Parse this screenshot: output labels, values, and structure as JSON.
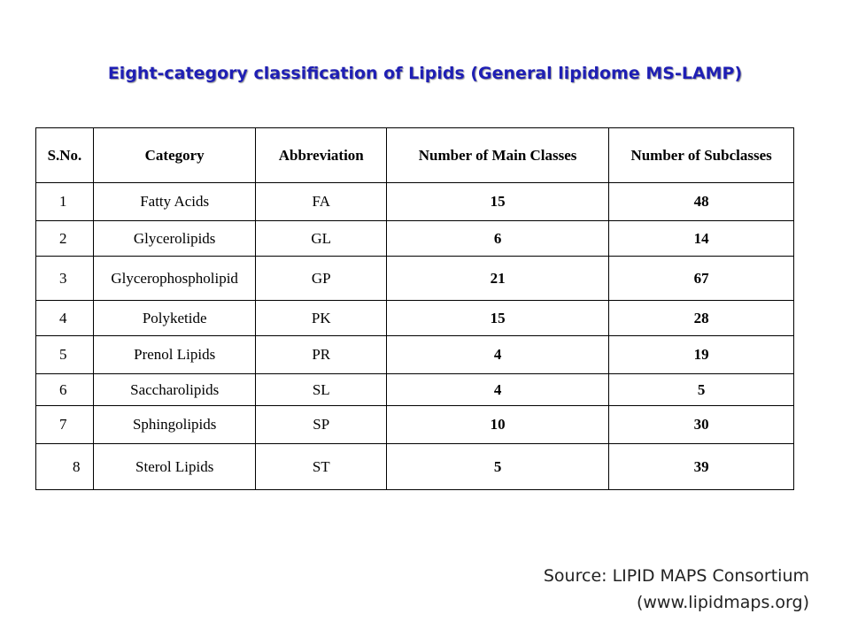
{
  "title": "Eight-category classification of Lipids (General lipidome MS-LAMP)",
  "table": {
    "headers": [
      "S.No.",
      "Category",
      "Abbreviation",
      "Number of Main Classes",
      "Number of Subclasses"
    ],
    "rows": [
      {
        "sno": "1",
        "category": "Fatty Acids",
        "abbr": "FA",
        "main": "15",
        "sub": "48"
      },
      {
        "sno": "2",
        "category": "Glycerolipids",
        "abbr": "GL",
        "main": "6",
        "sub": "14"
      },
      {
        "sno": "3",
        "category": "Glycerophospholipid",
        "abbr": "GP",
        "main": "21",
        "sub": "67"
      },
      {
        "sno": "4",
        "category": "Polyketide",
        "abbr": "PK",
        "main": "15",
        "sub": "28"
      },
      {
        "sno": "5",
        "category": "Prenol Lipids",
        "abbr": "PR",
        "main": "4",
        "sub": "19"
      },
      {
        "sno": "6",
        "category": "Saccharolipids",
        "abbr": "SL",
        "main": "4",
        "sub": "5"
      },
      {
        "sno": "7",
        "category": "Sphingolipids",
        "abbr": "SP",
        "main": "10",
        "sub": "30"
      },
      {
        "sno": "8",
        "category": "Sterol Lipids",
        "abbr": "ST",
        "main": "5",
        "sub": "39"
      }
    ]
  },
  "source": {
    "line1": "Source: LIPID MAPS Consortium",
    "line2": "(www.lipidmaps.org)"
  }
}
